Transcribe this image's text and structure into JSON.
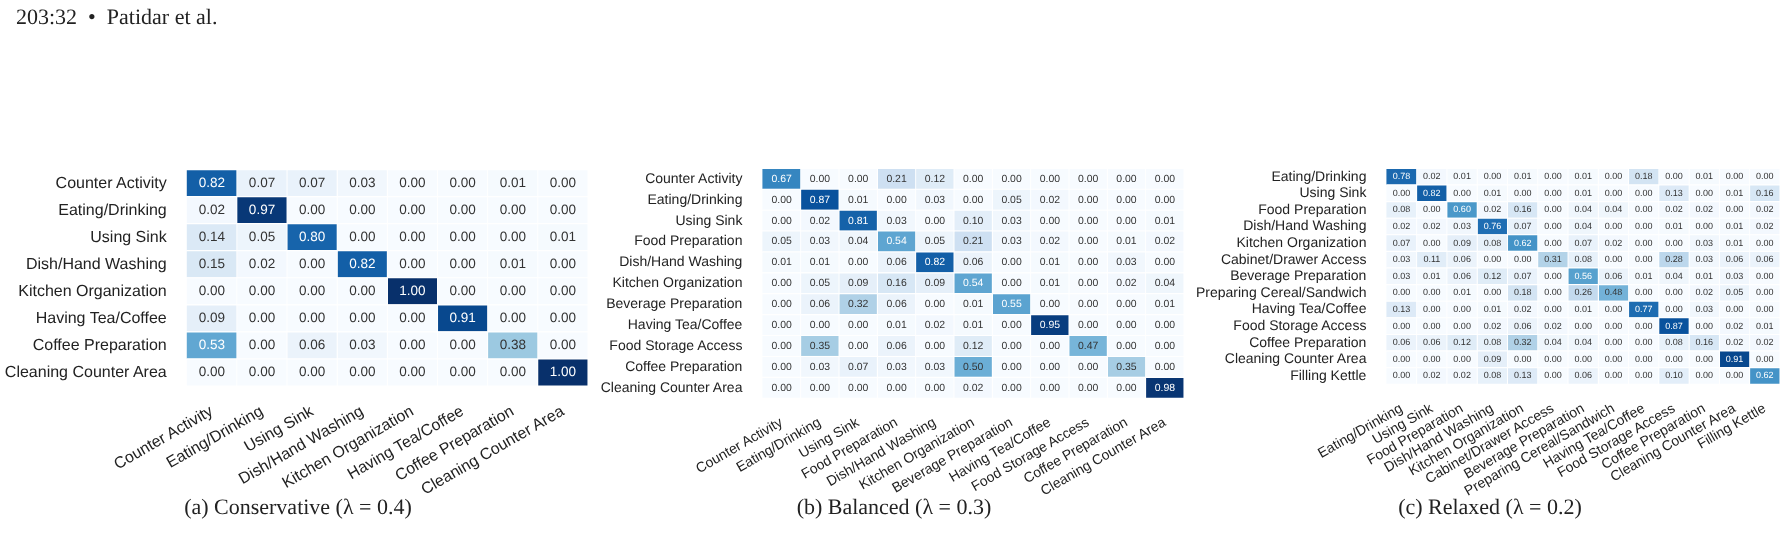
{
  "chart_data": [
    {
      "type": "heatmap",
      "title": "(a)  Conservative (λ = 0.4)",
      "annotations": [
        "203:32  •  Patidar et al."
      ],
      "data_labels": true,
      "categories": [
        "Counter Activity",
        "Eating/Drinking",
        "Using Sink",
        "Dish/Hand Washing",
        "Kitchen Organization",
        "Having Tea/Coffee",
        "Coffee Preparation",
        "Cleaning Counter Area"
      ],
      "y_categories": [
        "Counter Activity",
        "Eating/Drinking",
        "Using Sink",
        "Dish/Hand Washing",
        "Kitchen Organization",
        "Having Tea/Coffee",
        "Coffee Preparation",
        "Cleaning Counter Area"
      ],
      "cells": [
        [
          0.82,
          0.07,
          0.07,
          0.03,
          0.0,
          0.0,
          0.01,
          0.0
        ],
        [
          0.02,
          0.97,
          0.0,
          0.0,
          0.0,
          0.0,
          0.0,
          0.0
        ],
        [
          0.14,
          0.05,
          0.8,
          0.0,
          0.0,
          0.0,
          0.0,
          0.01
        ],
        [
          0.15,
          0.02,
          0.0,
          0.82,
          0.0,
          0.0,
          0.01,
          0.0
        ],
        [
          0.0,
          0.0,
          0.0,
          0.0,
          1.0,
          0.0,
          0.0,
          0.0
        ],
        [
          0.09,
          0.0,
          0.0,
          0.0,
          0.0,
          0.91,
          0.0,
          0.0
        ],
        [
          0.53,
          0.0,
          0.06,
          0.03,
          0.0,
          0.0,
          0.38,
          0.0
        ],
        [
          0.0,
          0.0,
          0.0,
          0.0,
          0.0,
          0.0,
          0.0,
          1.0
        ]
      ],
      "cell_labels": [
        [
          "0.82",
          "0.07",
          "0.07",
          "0.03",
          "0.00",
          "0.00",
          "0.01",
          "0.00"
        ],
        [
          "0.02",
          "0.97",
          "0.00",
          "0.00",
          "0.00",
          "0.00",
          "0.00",
          "0.00"
        ],
        [
          "0.14",
          "0.05",
          "0.80",
          "0.00",
          "0.00",
          "0.00",
          "0.00",
          "0.01"
        ],
        [
          "0.15",
          "0.02",
          "0.00",
          "0.82",
          "0.00",
          "0.00",
          "0.01",
          "0.00"
        ],
        [
          "0.00",
          "0.00",
          "0.00",
          "0.00",
          "1.00",
          "0.00",
          "0.00",
          "0.00"
        ],
        [
          "0.09",
          "0.00",
          "0.00",
          "0.00",
          "0.00",
          "0.91",
          "0.00",
          "0.00"
        ],
        [
          "0.53",
          "0.00",
          "0.06",
          "0.03",
          "0.00",
          "0.00",
          "0.38",
          "0.00"
        ],
        [
          "0.00",
          "0.00",
          "0.00",
          "0.00",
          "0.00",
          "0.00",
          "0.00",
          "1.00"
        ]
      ]
    },
    {
      "type": "heatmap",
      "title": "(b)  Balanced (λ = 0.3)",
      "data_labels": true,
      "categories": [
        "Counter Activity",
        "Eating/Drinking",
        "Using Sink",
        "Food Preparation",
        "Dish/Hand Washing",
        "Kitchen Organization",
        "Beverage Preparation",
        "Having Tea/Coffee",
        "Food Storage Access",
        "Coffee Preparation",
        "Cleaning Counter Area"
      ],
      "y_categories": [
        "Counter Activity",
        "Eating/Drinking",
        "Using Sink",
        "Food Preparation",
        "Dish/Hand Washing",
        "Kitchen Organization",
        "Beverage Preparation",
        "Having Tea/Coffee",
        "Food Storage Access",
        "Coffee Preparation",
        "Cleaning Counter Area"
      ],
      "cells": [
        [
          0.67,
          0.0,
          0.0,
          0.21,
          0.12,
          0.0,
          0.0,
          0.0,
          0.0,
          0.0,
          0.0
        ],
        [
          0.0,
          0.87,
          0.01,
          0.0,
          0.03,
          0.0,
          0.05,
          0.02,
          0.0,
          0.0,
          0.0
        ],
        [
          0.0,
          0.02,
          0.81,
          0.03,
          0.0,
          0.1,
          0.03,
          0.0,
          0.0,
          0.0,
          0.01
        ],
        [
          0.05,
          0.03,
          0.04,
          0.54,
          0.05,
          0.21,
          0.03,
          0.02,
          0.0,
          0.01,
          0.02
        ],
        [
          0.01,
          0.01,
          0.0,
          0.06,
          0.82,
          0.06,
          0.0,
          0.01,
          0.0,
          0.03,
          0.0
        ],
        [
          0.0,
          0.05,
          0.09,
          0.16,
          0.09,
          0.54,
          0.0,
          0.01,
          0.0,
          0.02,
          0.04
        ],
        [
          0.0,
          0.06,
          0.32,
          0.06,
          0.0,
          0.01,
          0.55,
          0.0,
          0.0,
          0.0,
          0.01
        ],
        [
          0.0,
          0.0,
          0.0,
          0.01,
          0.02,
          0.01,
          0.0,
          0.95,
          0.0,
          0.0,
          0.0
        ],
        [
          0.0,
          0.35,
          0.0,
          0.06,
          0.0,
          0.12,
          0.0,
          0.0,
          0.47,
          0.0,
          0.0
        ],
        [
          0.0,
          0.03,
          0.07,
          0.03,
          0.03,
          0.5,
          0.0,
          0.0,
          0.0,
          0.35,
          0.0
        ],
        [
          0.0,
          0.0,
          0.0,
          0.0,
          0.0,
          0.02,
          0.0,
          0.0,
          0.0,
          0.0,
          0.98
        ]
      ],
      "cell_labels": [
        [
          "0.67",
          "0.00",
          "0.00",
          "0.21",
          "0.12",
          "0.00",
          "0.00",
          "0.00",
          "0.00",
          "0.00",
          "0.00"
        ],
        [
          "0.00",
          "0.87",
          "0.01",
          "0.00",
          "0.03",
          "0.00",
          "0.05",
          "0.02",
          "0.00",
          "0.00",
          "0.00"
        ],
        [
          "0.00",
          "0.02",
          "0.81",
          "0.03",
          "0.00",
          "0.10",
          "0.03",
          "0.00",
          "0.00",
          "0.00",
          "0.01"
        ],
        [
          "0.05",
          "0.03",
          "0.04",
          "0.54",
          "0.05",
          "0.21",
          "0.03",
          "0.02",
          "0.00",
          "0.01",
          "0.02"
        ],
        [
          "0.01",
          "0.01",
          "0.00",
          "0.06",
          "0.82",
          "0.06",
          "0.00",
          "0.01",
          "0.00",
          "0.03",
          "0.00"
        ],
        [
          "0.00",
          "0.05",
          "0.09",
          "0.16",
          "0.09",
          "0.54",
          "0.00",
          "0.01",
          "0.00",
          "0.02",
          "0.04"
        ],
        [
          "0.00",
          "0.06",
          "0.32",
          "0.06",
          "0.00",
          "0.01",
          "0.55",
          "0.00",
          "0.00",
          "0.00",
          "0.01"
        ],
        [
          "0.00",
          "0.00",
          "0.00",
          "0.01",
          "0.02",
          "0.01",
          "0.00",
          "0.95",
          "0.00",
          "0.00",
          "0.00"
        ],
        [
          "0.00",
          "0.35",
          "0.00",
          "0.06",
          "0.00",
          "0.12",
          "0.00",
          "0.00",
          "0.47",
          "0.00",
          "0.00"
        ],
        [
          "0.00",
          "0.03",
          "0.07",
          "0.03",
          "0.03",
          "0.50",
          "0.00",
          "0.00",
          "0.00",
          "0.35",
          "0.00"
        ],
        [
          "0.00",
          "0.00",
          "0.00",
          "0.00",
          "0.00",
          "0.02",
          "0.00",
          "0.00",
          "0.00",
          "0.00",
          "0.98"
        ]
      ]
    },
    {
      "type": "heatmap",
      "title": "(c)  Relaxed (λ = 0.2)",
      "data_labels": true,
      "categories": [
        "Eating/Drinking",
        "Using Sink",
        "Food Preparation",
        "Dish/Hand Washing",
        "Kitchen Organization",
        "Cabinet/Drawer Access",
        "Beverage Preparation",
        "Preparing Cereal/Sandwich",
        "Having Tea/Coffee",
        "Food Storage Access",
        "Coffee Preparation",
        "Cleaning Counter Area",
        "Filling Kettle"
      ],
      "y_categories": [
        "Eating/Drinking",
        "Using Sink",
        "Food Preparation",
        "Dish/Hand Washing",
        "Kitchen Organization",
        "Cabinet/Drawer Access",
        "Beverage Preparation",
        "Preparing Cereal/Sandwich",
        "Having Tea/Coffee",
        "Food Storage Access",
        "Coffee Preparation",
        "Cleaning Counter Area",
        "Filling Kettle"
      ],
      "cells": [
        [
          0.78,
          0.02,
          0.01,
          0.0,
          0.01,
          0.0,
          0.01,
          0.0,
          0.18,
          0.0,
          0.01,
          0.0,
          0.0
        ],
        [
          0.0,
          0.82,
          0.0,
          0.01,
          0.0,
          0.0,
          0.01,
          0.0,
          0.0,
          0.13,
          0.0,
          0.01,
          0.16
        ],
        [
          0.08,
          0.0,
          0.6,
          0.02,
          0.16,
          0.0,
          0.04,
          0.04,
          0.0,
          0.02,
          0.02,
          0.0,
          0.02
        ],
        [
          0.02,
          0.02,
          0.03,
          0.76,
          0.07,
          0.0,
          0.04,
          0.0,
          0.0,
          0.01,
          0.0,
          0.01,
          0.02
        ],
        [
          0.07,
          0.0,
          0.09,
          0.08,
          0.62,
          0.0,
          0.07,
          0.02,
          0.0,
          0.0,
          0.03,
          0.01,
          0.0
        ],
        [
          0.03,
          0.11,
          0.06,
          0.0,
          0.0,
          0.31,
          0.08,
          0.0,
          0.0,
          0.28,
          0.03,
          0.06,
          0.06
        ],
        [
          0.03,
          0.01,
          0.06,
          0.12,
          0.07,
          0.0,
          0.56,
          0.06,
          0.01,
          0.04,
          0.01,
          0.03,
          0.0
        ],
        [
          0.0,
          0.0,
          0.01,
          0.0,
          0.18,
          0.0,
          0.26,
          0.48,
          0.0,
          0.0,
          0.02,
          0.05,
          0.0
        ],
        [
          0.13,
          0.0,
          0.0,
          0.01,
          0.02,
          0.0,
          0.01,
          0.0,
          0.77,
          0.0,
          0.03,
          0.0,
          0.0
        ],
        [
          0.0,
          0.0,
          0.0,
          0.02,
          0.06,
          0.02,
          0.0,
          0.0,
          0.0,
          0.87,
          0.0,
          0.02,
          0.01
        ],
        [
          0.06,
          0.06,
          0.12,
          0.08,
          0.32,
          0.04,
          0.04,
          0.0,
          0.0,
          0.08,
          0.16,
          0.02,
          0.02
        ],
        [
          0.0,
          0.0,
          0.0,
          0.09,
          0.0,
          0.0,
          0.0,
          0.0,
          0.0,
          0.0,
          0.0,
          0.91,
          0.0
        ],
        [
          0.0,
          0.02,
          0.02,
          0.08,
          0.13,
          0.0,
          0.06,
          0.0,
          0.0,
          0.1,
          0.0,
          0.0,
          0.62
        ]
      ],
      "cell_labels": [
        [
          "0.78",
          "0.02",
          "0.01",
          "0.00",
          "0.01",
          "0.00",
          "0.01",
          "0.00",
          "0.18",
          "0.00",
          "0.01",
          "0.00",
          "0.00"
        ],
        [
          "0.00",
          "0.82",
          "0.00",
          "0.01",
          "0.00",
          "0.00",
          "0.01",
          "0.00",
          "0.00",
          "0.13",
          "0.00",
          "0.01",
          "0.16"
        ],
        [
          "0.08",
          "0.00",
          "0.60",
          "0.02",
          "0.16",
          "0.00",
          "0.04",
          "0.04",
          "0.00",
          "0.02",
          "0.02",
          "0.00",
          "0.02"
        ],
        [
          "0.02",
          "0.02",
          "0.03",
          "0.76",
          "0.07",
          "0.00",
          "0.04",
          "0.00",
          "0.00",
          "0.01",
          "0.00",
          "0.01",
          "0.02"
        ],
        [
          "0.07",
          "0.00",
          "0.09",
          "0.08",
          "0.62",
          "0.00",
          "0.07",
          "0.02",
          "0.00",
          "0.00",
          "0.03",
          "0.01",
          "0.00"
        ],
        [
          "0.03",
          "0.11",
          "0.06",
          "0.00",
          "0.00",
          "0.31",
          "0.08",
          "0.00",
          "0.00",
          "0.28",
          "0.03",
          "0.06",
          "0.06"
        ],
        [
          "0.03",
          "0.01",
          "0.06",
          "0.12",
          "0.07",
          "0.00",
          "0.56",
          "0.06",
          "0.01",
          "0.04",
          "0.01",
          "0.03",
          "0.00"
        ],
        [
          "0.00",
          "0.00",
          "0.01",
          "0.00",
          "0.18",
          "0.00",
          "0.26",
          "0.48",
          "0.00",
          "0.00",
          "0.02",
          "0.05",
          "0.00"
        ],
        [
          "0.13",
          "0.00",
          "0.00",
          "0.01",
          "0.02",
          "0.00",
          "0.01",
          "0.00",
          "0.77",
          "0.00",
          "0.03",
          "0.00",
          "0.00"
        ],
        [
          "0.00",
          "0.00",
          "0.00",
          "0.02",
          "0.06",
          "0.02",
          "0.00",
          "0.00",
          "0.00",
          "0.87",
          "0.00",
          "0.02",
          "0.01"
        ],
        [
          "0.06",
          "0.06",
          "0.12",
          "0.08",
          "0.32",
          "0.04",
          "0.04",
          "0.00",
          "0.00",
          "0.08",
          "0.16",
          "0.02",
          "0.02"
        ],
        [
          "0.00",
          "0.00",
          "0.00",
          "0.09",
          "0.00",
          "0.00",
          "0.00",
          "0.00",
          "0.00",
          "0.00",
          "0.00",
          "0.91",
          "0.00"
        ],
        [
          "0.00",
          "0.02",
          "0.02",
          "0.08",
          "0.13",
          "0.00",
          "0.06",
          "0.00",
          "0.00",
          "0.10",
          "0.00",
          "0.00",
          "0.62"
        ]
      ]
    }
  ]
}
